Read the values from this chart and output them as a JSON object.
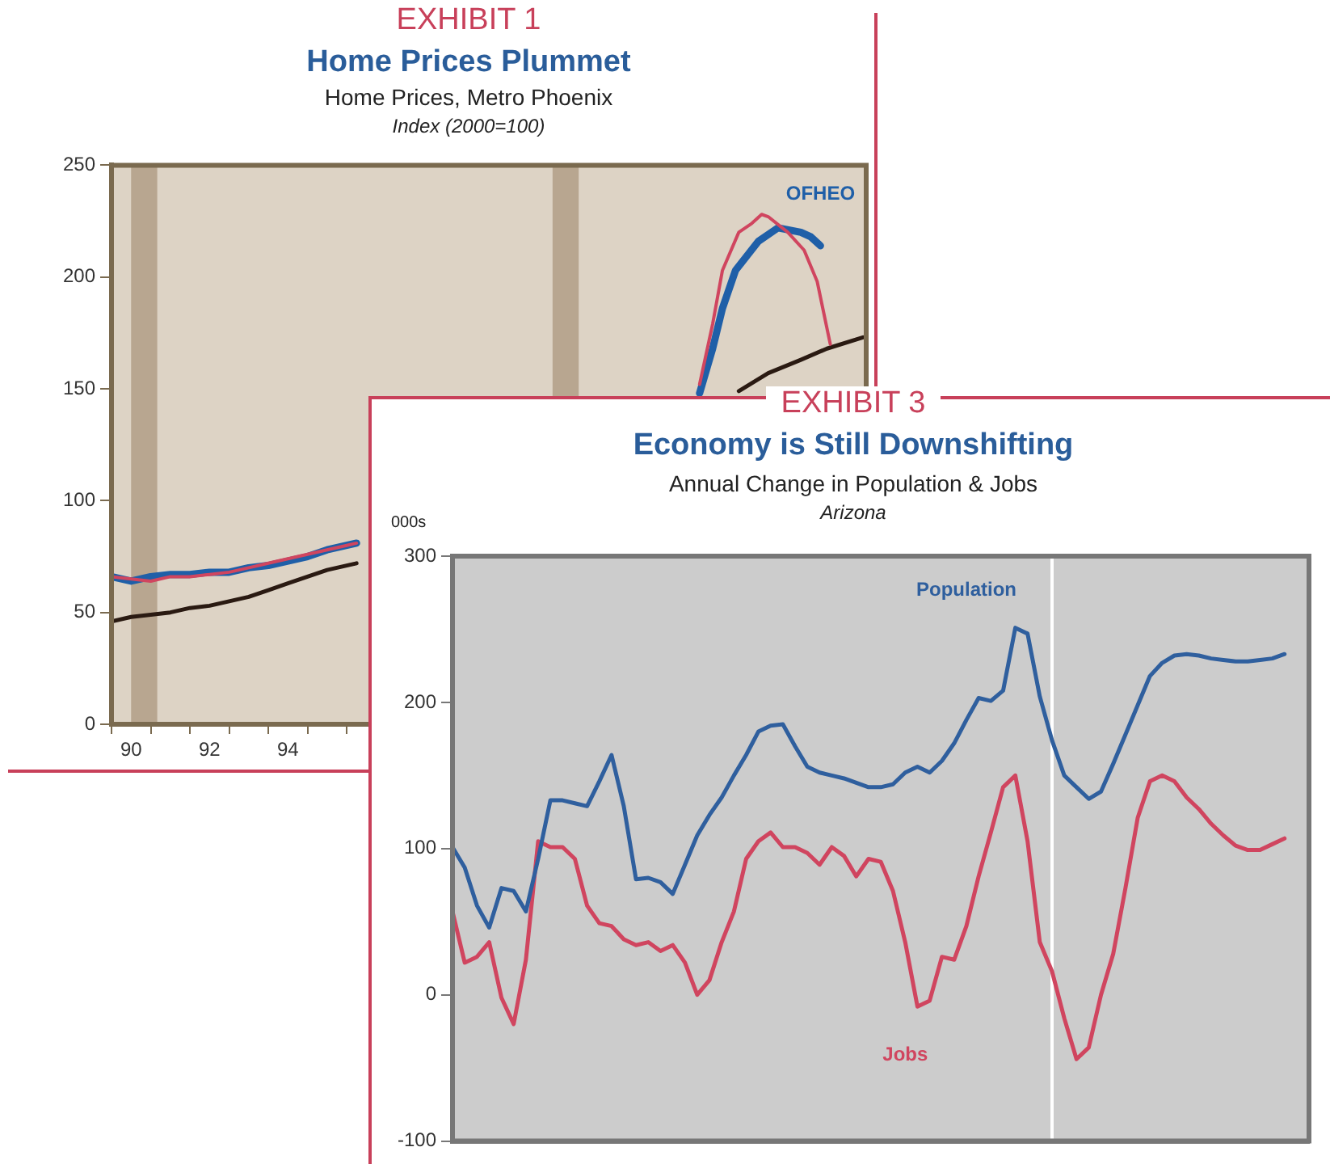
{
  "chart_data": [
    {
      "type": "line",
      "title": "Home Prices Plummet",
      "subtitle": "Home Prices, Metro Phoenix",
      "ylabel": "Index (2000=100)",
      "annotations": [
        "EXHIBIT 1"
      ],
      "xlim": [
        "1990-01",
        "2009-04"
      ],
      "xticks": [
        {
          "value": "1990-01",
          "label": null
        },
        {
          "value": "1990-07",
          "label": "90"
        },
        {
          "value": "1991-01",
          "label": null
        },
        {
          "value": "1992-01",
          "label": null
        },
        {
          "value": "1992-07",
          "label": "92"
        },
        {
          "value": "1993-01",
          "label": null
        },
        {
          "value": "1994-01",
          "label": null
        },
        {
          "value": "1994-07",
          "label": "94"
        },
        {
          "value": "1995-01",
          "label": null
        },
        {
          "value": "1996-01",
          "label": null
        }
      ],
      "ylim": [
        0,
        250
      ],
      "yticks": [
        0,
        50,
        100,
        150,
        200,
        250
      ],
      "bands": [
        {
          "axis": "x",
          "from": "1990-07",
          "to": "1991-03",
          "color": "#b8a690"
        },
        {
          "axis": "x",
          "from": "2001-04",
          "to": "2001-12",
          "color": "#b8a690"
        }
      ],
      "series": [
        {
          "color": "#d0455f",
          "x": [
            "1990-01",
            "1990-07",
            "1991-01",
            "1991-07",
            "1992-01",
            "1992-07",
            "1993-01",
            "1993-07",
            "1994-01",
            "1994-07",
            "1995-01",
            "1995-07",
            "1996-01",
            "1996-04",
            "2000-01",
            "2005-01",
            "2005-05",
            "2005-08",
            "2006-01",
            "2006-05",
            "2006-08",
            "2006-10",
            "2007-04",
            "2007-09",
            "2008-01",
            "2008-03",
            "2008-05"
          ],
          "values": [
            66,
            65,
            64,
            66,
            66,
            67,
            68,
            70,
            72,
            74,
            76,
            78,
            80,
            81,
            null,
            152,
            179,
            203,
            220,
            224,
            228,
            227,
            220,
            212,
            198,
            184,
            170
          ]
        },
        {
          "name": "OFHEO",
          "color": "#1f5fa8",
          "x": [
            "1990-01",
            "1990-07",
            "1991-01",
            "1991-07",
            "1992-01",
            "1992-07",
            "1993-01",
            "1993-07",
            "1994-01",
            "1994-07",
            "1995-01",
            "1995-07",
            "1996-01",
            "1996-04",
            "2000-01",
            "2005-01",
            "2005-05",
            "2005-08",
            "2005-12",
            "2006-07",
            "2007-01",
            "2007-08",
            "2007-11",
            "2008-02"
          ],
          "values": [
            66,
            64,
            66,
            67,
            67,
            68,
            68,
            70,
            71,
            73,
            75,
            78,
            80,
            81,
            null,
            148,
            168,
            186,
            203,
            216,
            222,
            220,
            218,
            214
          ]
        },
        {
          "color": "#2a1a12",
          "x": [
            "1990-01",
            "1990-07",
            "1991-01",
            "1991-07",
            "1992-01",
            "1992-07",
            "1993-01",
            "1993-07",
            "1994-01",
            "1994-07",
            "1995-01",
            "1995-07",
            "1996-01",
            "1996-04",
            "2000-01",
            "2006-01",
            "2006-10",
            "2007-08",
            "2008-04",
            "2009-03"
          ],
          "values": [
            46,
            48,
            49,
            50,
            52,
            53,
            55,
            57,
            60,
            63,
            66,
            69,
            71,
            72,
            null,
            149,
            157,
            163,
            168,
            173
          ]
        }
      ]
    },
    {
      "type": "line",
      "title": "Economy is Still Downshifting",
      "subtitle": "Annual Change in Population & Jobs",
      "ylabel": "000s",
      "annotations": [
        "EXHIBIT 3",
        "Arizona"
      ],
      "tick_labels": "y",
      "categories": [
        null,
        null,
        null,
        null,
        null,
        null,
        null,
        null,
        null,
        null,
        null,
        null,
        null,
        null,
        null,
        null,
        null,
        null,
        null,
        null,
        null,
        null,
        null,
        null,
        null,
        null,
        null,
        null,
        null,
        null,
        null,
        null,
        null,
        null,
        null,
        null,
        null,
        null,
        null,
        null,
        null,
        null,
        null,
        null,
        null,
        null,
        null,
        null,
        null,
        null,
        null,
        null,
        null,
        null,
        null,
        null,
        null,
        null,
        null,
        null,
        null,
        null,
        null,
        null,
        null,
        null,
        null,
        null,
        null,
        null,
        null
      ],
      "ylim": [
        -100,
        300
      ],
      "yticks": [
        -100,
        0,
        100,
        200,
        300
      ],
      "series": [
        {
          "name": "Population",
          "color": "#2f5f9e",
          "values": [
            101,
            87,
            61,
            46,
            73,
            71,
            57,
            93,
            133,
            133,
            131,
            129,
            146,
            164,
            129,
            79,
            80,
            77,
            69,
            89,
            109,
            123,
            135,
            150,
            164,
            180,
            184,
            185,
            170,
            156,
            152,
            150,
            148,
            145,
            142,
            142,
            144,
            152,
            156,
            152,
            160,
            172,
            188,
            203,
            201,
            208,
            251,
            247,
            204,
            174,
            150,
            142,
            134,
            139,
            158,
            178,
            198,
            218,
            227,
            232,
            233,
            232,
            230,
            229,
            228,
            228,
            229,
            230,
            233,
            null,
            null
          ]
        },
        {
          "name": "Jobs",
          "color": "#d0455f",
          "values": [
            57,
            22,
            26,
            36,
            -2,
            -20,
            24,
            105,
            101,
            101,
            93,
            61,
            49,
            47,
            38,
            34,
            36,
            30,
            34,
            22,
            0,
            10,
            36,
            57,
            93,
            105,
            111,
            101,
            101,
            97,
            89,
            101,
            95,
            81,
            93,
            91,
            71,
            36,
            -8,
            -4,
            26,
            24,
            47,
            81,
            111,
            142,
            150,
            105,
            36,
            16,
            -16,
            -44,
            -36,
            0,
            28,
            73,
            121,
            146,
            150,
            146,
            135,
            127,
            117,
            109,
            102,
            99,
            99,
            103,
            107,
            null,
            null
          ]
        }
      ]
    }
  ]
}
